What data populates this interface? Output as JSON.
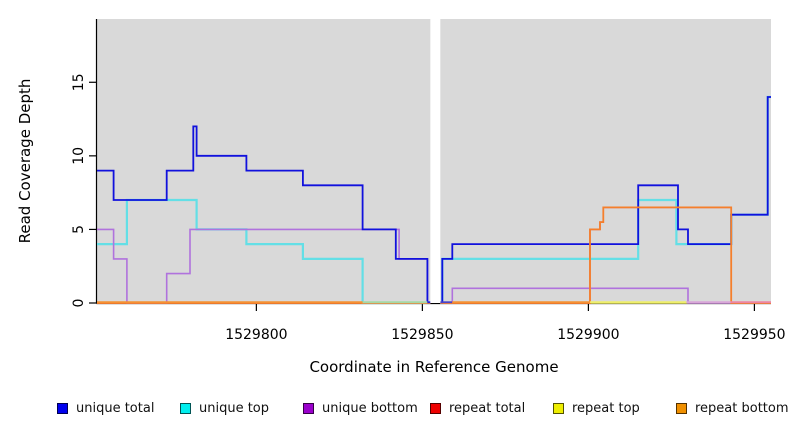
{
  "chart_data": {
    "type": "step-line",
    "title": "",
    "xlabel": "Coordinate in Reference Genome",
    "ylabel": "Read Coverage Depth",
    "x_domain": [
      1529752,
      1529955
    ],
    "ylim": [
      0,
      19.3
    ],
    "x_ticks": [
      1529800,
      1529850,
      1529900,
      1529950
    ],
    "y_ticks": [
      0,
      5,
      10,
      15
    ],
    "plot_background": "#d9d9d9",
    "page_background": "#ffffff",
    "gap_region": {
      "from": 1529852.4,
      "to": 1529855.4,
      "color": "#ffffff"
    },
    "series": [
      {
        "key": "repeat-top",
        "name": "repeat top",
        "color": "#efef6a",
        "width": 1.4,
        "segments": [
          [
            [
              1529752,
              0
            ],
            [
              1529852.4,
              0
            ]
          ],
          [
            [
              1529855.4,
              0
            ],
            [
              1529955,
              0
            ]
          ]
        ]
      },
      {
        "key": "repeat-total",
        "name": "repeat total",
        "color": "#dd2222",
        "width": 1.4,
        "segments": [
          [
            [
              1529752,
              0
            ],
            [
              1529852.4,
              0
            ]
          ],
          [
            [
              1529855.4,
              0
            ],
            [
              1529900.5,
              5
            ],
            [
              1529903.5,
              5.5
            ],
            [
              1529904.5,
              6.5
            ],
            [
              1529943,
              0
            ],
            [
              1529955,
              0
            ]
          ]
        ]
      },
      {
        "key": "unique-top",
        "name": "unique top",
        "color": "#63dfe6",
        "width": 2.2,
        "segments": [
          [
            [
              1529752,
              4
            ],
            [
              1529761,
              7
            ],
            [
              1529782,
              5
            ],
            [
              1529797,
              4
            ],
            [
              1529814,
              3
            ],
            [
              1529832,
              0
            ],
            [
              1529852.4,
              0
            ]
          ],
          [
            [
              1529855.4,
              0
            ],
            [
              1529856,
              3
            ],
            [
              1529915,
              7
            ],
            [
              1529926.5,
              4
            ],
            [
              1529943,
              6
            ],
            [
              1529954,
              14
            ],
            [
              1529955,
              14
            ]
          ]
        ]
      },
      {
        "key": "unique-bottom",
        "name": "unique bottom",
        "color": "#b072dd",
        "width": 1.6,
        "segments": [
          [
            [
              1529752,
              5
            ],
            [
              1529757,
              3
            ],
            [
              1529761,
              0
            ],
            [
              1529773,
              2
            ],
            [
              1529780,
              5
            ],
            [
              1529843,
              3
            ],
            [
              1529851.5,
              0
            ],
            [
              1529852.4,
              0
            ]
          ],
          [
            [
              1529855.4,
              0
            ],
            [
              1529859,
              1
            ],
            [
              1529930,
              0
            ],
            [
              1529955,
              0
            ]
          ]
        ]
      },
      {
        "key": "unique-total",
        "name": "unique total",
        "color": "#1111dd",
        "width": 1.8,
        "segments": [
          [
            [
              1529752,
              9
            ],
            [
              1529757,
              7
            ],
            [
              1529773,
              9
            ],
            [
              1529781,
              12
            ],
            [
              1529782,
              10
            ],
            [
              1529797,
              9
            ],
            [
              1529814,
              8
            ],
            [
              1529832,
              5
            ],
            [
              1529842,
              3
            ],
            [
              1529851.5,
              0
            ],
            [
              1529852.4,
              0
            ]
          ],
          [
            [
              1529855.4,
              0
            ],
            [
              1529856,
              3
            ],
            [
              1529859,
              4
            ],
            [
              1529915,
              8
            ],
            [
              1529927,
              5
            ],
            [
              1529930,
              4
            ],
            [
              1529943,
              6
            ],
            [
              1529954,
              14
            ],
            [
              1529955,
              14
            ]
          ]
        ]
      },
      {
        "key": "repeat-bottom",
        "name": "repeat bottom",
        "color": "#f57f2c",
        "width": 1.8,
        "segments": [
          [
            [
              1529752,
              0
            ],
            [
              1529852.4,
              0
            ]
          ],
          [
            [
              1529855.4,
              0
            ],
            [
              1529900.5,
              5
            ],
            [
              1529903.5,
              5.5
            ],
            [
              1529904.5,
              6.5
            ],
            [
              1529943,
              0
            ],
            [
              1529955,
              0
            ]
          ]
        ]
      }
    ],
    "baseline_segments": [
      {
        "from": 1529752,
        "to": 1529832,
        "color": "#f59133"
      },
      {
        "from": 1529832,
        "to": 1529851.5,
        "color": "#a6d9a6"
      },
      {
        "from": 1529851.5,
        "to": 1529852.4,
        "color": "#2222dd"
      },
      {
        "from": 1529855.4,
        "to": 1529859,
        "color": "#4b44c8"
      },
      {
        "from": 1529859,
        "to": 1529900.5,
        "color": "#f59133"
      },
      {
        "from": 1529900.5,
        "to": 1529929.5,
        "color": "#efef6a"
      },
      {
        "from": 1529929.5,
        "to": 1529942.8,
        "color": "#d9a6d9"
      },
      {
        "from": 1529942.8,
        "to": 1529955,
        "color": "#ee85a3"
      }
    ],
    "legend": [
      {
        "label": "unique total",
        "fill": "#0000ee"
      },
      {
        "label": "unique top",
        "fill": "#00eeee"
      },
      {
        "label": "unique bottom",
        "fill": "#9a00cc"
      },
      {
        "label": "repeat total",
        "fill": "#ee0000"
      },
      {
        "label": "repeat top",
        "fill": "#eeee00"
      },
      {
        "label": "repeat bottom",
        "fill": "#f09000"
      }
    ]
  }
}
